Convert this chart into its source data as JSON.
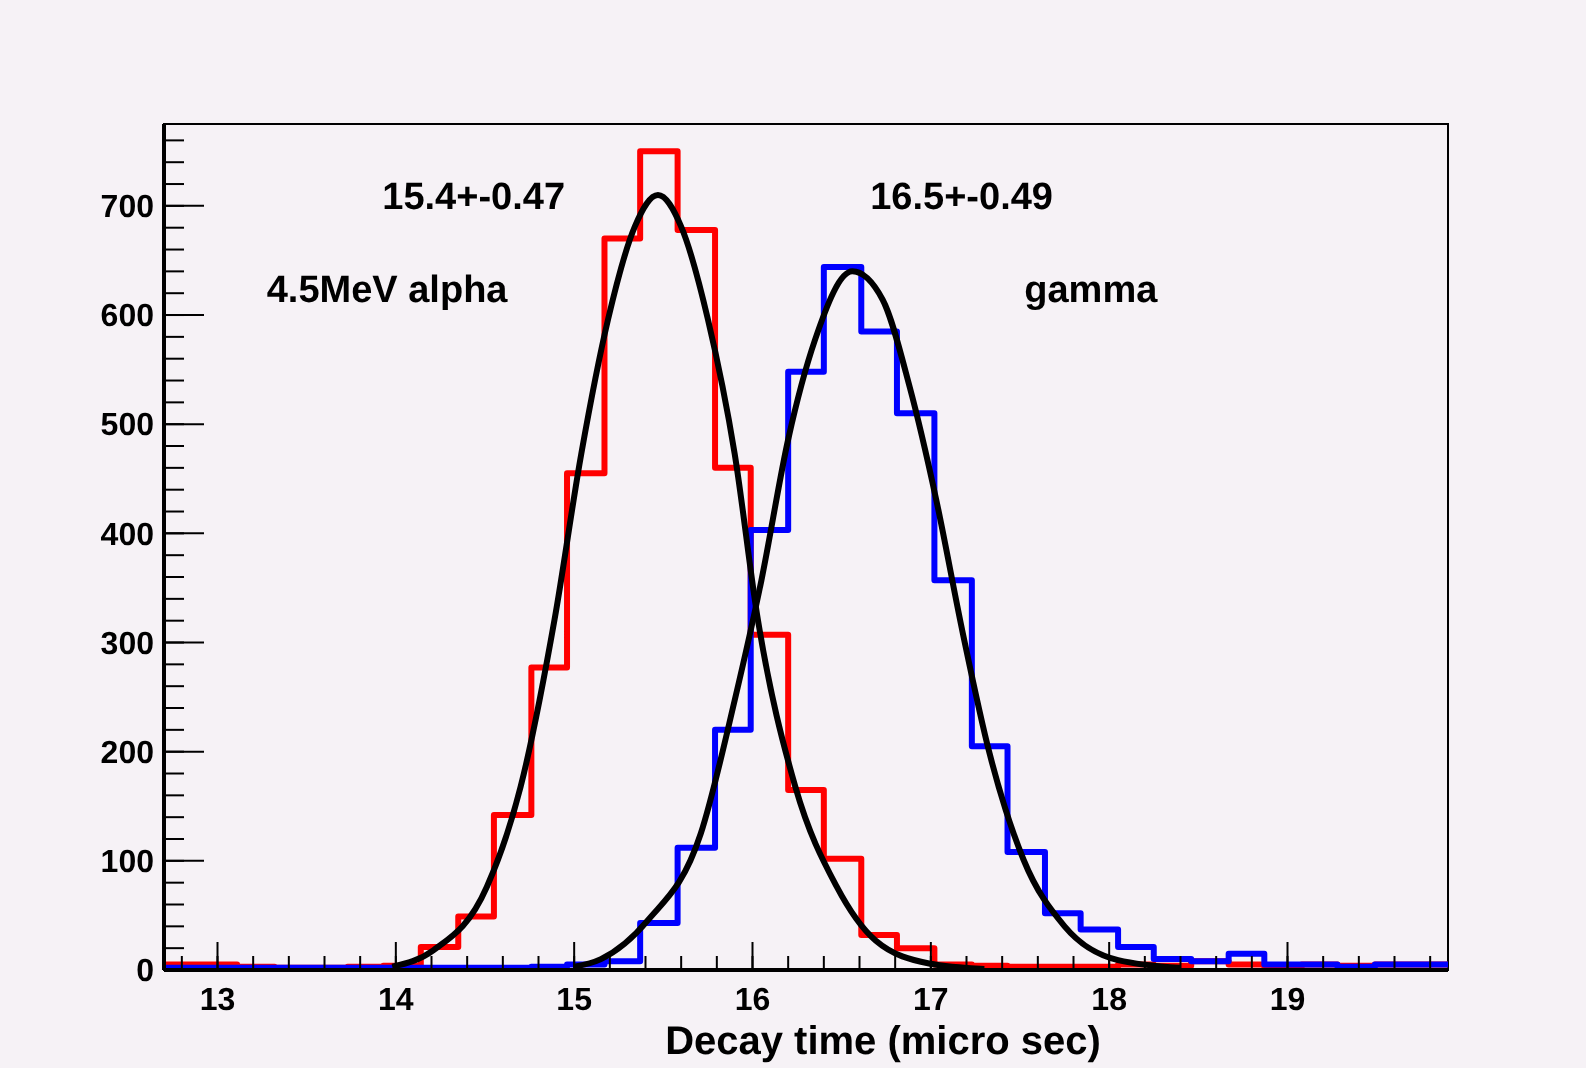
{
  "chart_data": {
    "type": "histogram",
    "xlabel": "Decay time (micro sec)",
    "bins": [
      12.7,
      12.91,
      13.11,
      13.32,
      13.52,
      13.73,
      13.93,
      14.14,
      14.35,
      14.55,
      14.76,
      14.96,
      15.17,
      15.37,
      15.58,
      15.79,
      15.99,
      16.2,
      16.4,
      16.61,
      16.81,
      17.02,
      17.23,
      17.43,
      17.64,
      17.84,
      18.05,
      18.25,
      18.46,
      18.67,
      18.87,
      19.08,
      19.28,
      19.49,
      19.69,
      19.9
    ],
    "series": [
      {
        "color": "#ff0000",
        "values": [
          5,
          5,
          3,
          2,
          2,
          3,
          4,
          21,
          49,
          142,
          277,
          455,
          670,
          750,
          678,
          460,
          307,
          165,
          102,
          32,
          20,
          5,
          4,
          3,
          3,
          3,
          5,
          4,
          8,
          5,
          3,
          5,
          4,
          5,
          5
        ]
      },
      {
        "color": "#0000ff",
        "values": [
          2,
          2,
          2,
          2,
          2,
          2,
          2,
          2,
          2,
          2,
          3,
          5,
          8,
          43,
          112,
          220,
          403,
          548,
          644,
          585,
          510,
          357,
          205,
          108,
          52,
          37,
          21,
          10,
          8,
          15,
          5,
          5,
          3,
          5,
          5
        ]
      },
      {
        "type": "line",
        "color": "#000000",
        "x": [
          13.98,
          14.21,
          14.51,
          14.7,
          14.89,
          15.04,
          15.19,
          15.34,
          15.47,
          15.6,
          15.75,
          15.9,
          16.03,
          16.24,
          16.47,
          16.69,
          16.99,
          17.3
        ],
        "values": [
          3,
          18,
          76,
          168,
          321,
          473,
          596,
          681,
          710,
          681,
          596,
          473,
          321,
          168,
          77,
          27,
          6,
          1
        ]
      },
      {
        "type": "line",
        "color": "#000000",
        "x": [
          15.0,
          15.15,
          15.41,
          15.71,
          15.9,
          16.05,
          16.2,
          16.35,
          16.56,
          16.73,
          16.88,
          17.03,
          17.18,
          17.33,
          17.52,
          17.75,
          18.05,
          18.4
        ],
        "values": [
          3,
          10,
          45,
          125,
          247,
          357,
          486,
          577,
          640,
          614,
          535,
          431,
          308,
          198,
          101,
          40,
          9,
          2
        ]
      }
    ],
    "xlim": [
      12.7,
      19.9
    ],
    "ylim": [
      0,
      775
    ],
    "xticks": [
      13,
      14,
      15,
      16,
      17,
      18,
      19
    ],
    "yticks": [
      0,
      100,
      200,
      300,
      400,
      500,
      600,
      700
    ],
    "annotations": [
      "15.4+-0.47",
      "4.5MeV alpha",
      "16.5+-0.49",
      "gamma"
    ],
    "grid": false
  }
}
